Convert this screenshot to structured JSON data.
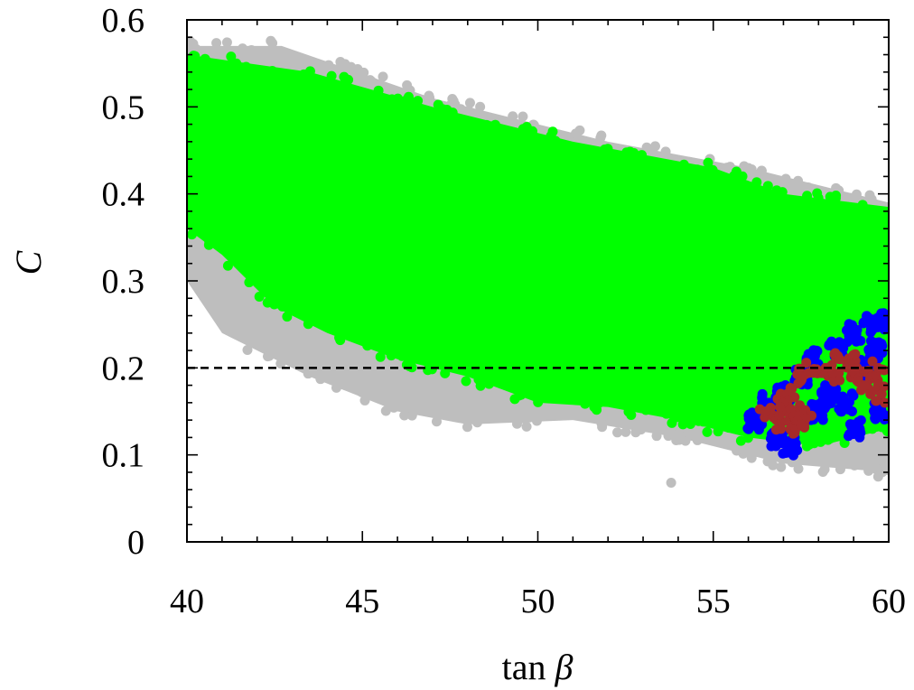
{
  "chart_data": {
    "type": "scatter",
    "xlabel": "tan β",
    "ylabel": "C",
    "xlim": [
      40,
      60
    ],
    "ylim": [
      0,
      0.6
    ],
    "xticks": [
      "40",
      "45",
      "50",
      "55",
      "60"
    ],
    "yticks": [
      "0",
      "0.1",
      "0.2",
      "0.3",
      "0.4",
      "0.5",
      "0.6"
    ],
    "grid": false,
    "legend": "none",
    "reference_lines": [
      {
        "orientation": "horizontal",
        "y": 0.2,
        "style": "dashed",
        "color": "#000000"
      }
    ],
    "series": [
      {
        "color": "#bebebe",
        "region": "broad band slightly wider than green",
        "upper_edge": [
          [
            40,
            0.57
          ],
          [
            42.7,
            0.57
          ],
          [
            47,
            0.51
          ],
          [
            52,
            0.46
          ],
          [
            56,
            0.43
          ],
          [
            60,
            0.39
          ]
        ],
        "lower_edge": [
          [
            40,
            0.3
          ],
          [
            41,
            0.24
          ],
          [
            43.5,
            0.19
          ],
          [
            46,
            0.15
          ],
          [
            48,
            0.135
          ],
          [
            51,
            0.14
          ],
          [
            54,
            0.12
          ],
          [
            57,
            0.09
          ],
          [
            60,
            0.08
          ]
        ],
        "outliers": [
          [
            53.8,
            0.068
          ],
          [
            59.7,
            0.075
          ],
          [
            56.7,
            0.088
          ]
        ]
      },
      {
        "color": "#00ff00",
        "region": "dense band",
        "upper_edge": [
          [
            40,
            0.56
          ],
          [
            43.5,
            0.54
          ],
          [
            47,
            0.5
          ],
          [
            51,
            0.46
          ],
          [
            55,
            0.43
          ],
          [
            57,
            0.4
          ],
          [
            60,
            0.385
          ]
        ],
        "lower_edge": [
          [
            40,
            0.36
          ],
          [
            41,
            0.33
          ],
          [
            42.5,
            0.27
          ],
          [
            44,
            0.24
          ],
          [
            46,
            0.21
          ],
          [
            48,
            0.19
          ],
          [
            50,
            0.16
          ],
          [
            52,
            0.155
          ],
          [
            54,
            0.14
          ],
          [
            56,
            0.12
          ],
          [
            58,
            0.11
          ],
          [
            60,
            0.13
          ]
        ]
      },
      {
        "color": "#0000ff",
        "region": "cluster at high tan β",
        "points": [
          [
            56.2,
            0.14
          ],
          [
            56.8,
            0.12
          ],
          [
            57.2,
            0.11
          ],
          [
            58.0,
            0.15
          ],
          [
            58.5,
            0.22
          ],
          [
            59.0,
            0.24
          ],
          [
            59.5,
            0.25
          ],
          [
            60.0,
            0.255
          ],
          [
            59.8,
            0.15
          ],
          [
            59.0,
            0.13
          ],
          [
            57.5,
            0.19
          ],
          [
            58.3,
            0.17
          ],
          [
            59.3,
            0.2
          ],
          [
            57.8,
            0.21
          ],
          [
            56.6,
            0.16
          ],
          [
            58.8,
            0.16
          ],
          [
            59.6,
            0.22
          ],
          [
            57.0,
            0.17
          ]
        ]
      },
      {
        "color": "#a52a2a",
        "region": "sub-cluster within blue",
        "points": [
          [
            56.5,
            0.15
          ],
          [
            56.8,
            0.14
          ],
          [
            57.0,
            0.16
          ],
          [
            57.2,
            0.13
          ],
          [
            57.4,
            0.15
          ],
          [
            57.6,
            0.14
          ],
          [
            57.1,
            0.17
          ],
          [
            56.9,
            0.155
          ],
          [
            57.3,
            0.145
          ],
          [
            57.5,
            0.135
          ],
          [
            57.5,
            0.19
          ],
          [
            58.2,
            0.2
          ],
          [
            58.6,
            0.21
          ],
          [
            59.1,
            0.2
          ],
          [
            59.5,
            0.19
          ],
          [
            59.7,
            0.2
          ],
          [
            59.3,
            0.18
          ],
          [
            58.4,
            0.195
          ],
          [
            59.8,
            0.17
          ],
          [
            58.9,
            0.205
          ],
          [
            57.8,
            0.195
          ]
        ]
      }
    ]
  }
}
